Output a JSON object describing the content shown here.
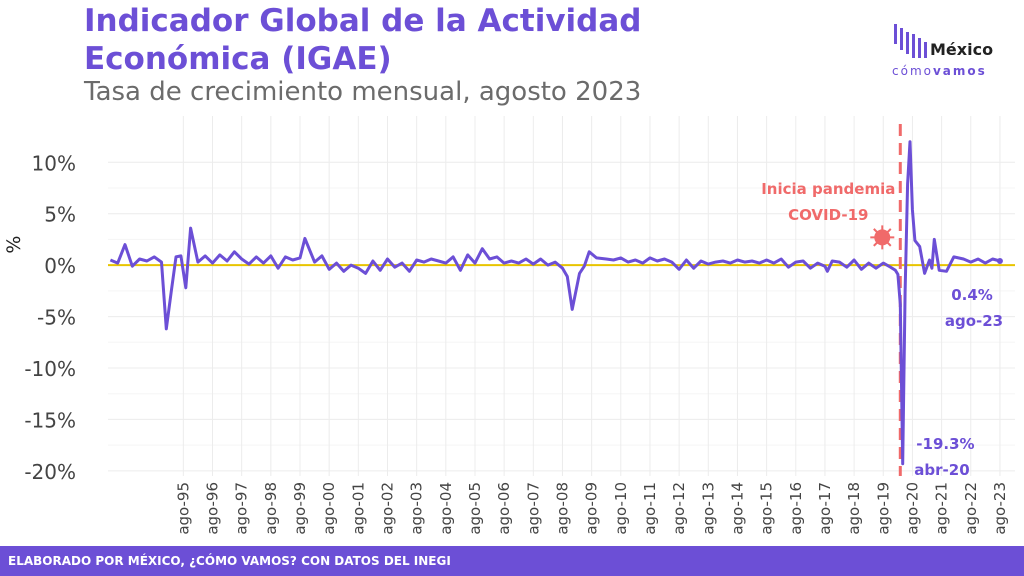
{
  "title": "Indicador Global de la Actividad Económica (IGAE)",
  "subtitle": "Tasa de crecimiento mensual, agosto 2023",
  "logo": {
    "word_main": "México",
    "word_prefix": "cómo",
    "word_bold": "vamos"
  },
  "footer": "ELABORADO POR MÉXICO, ¿CÓMO VAMOS? CON DATOS DEL INEGI",
  "colors": {
    "accent": "#6c4fd6",
    "line": "#6c4fd6",
    "zero_line": "#e8c400",
    "pandemic": "#f06a6a",
    "footer_bg": "#6c4fd6"
  },
  "chart_data": {
    "type": "line",
    "title": "Indicador Global de la Actividad Económica (IGAE)",
    "subtitle": "Tasa de crecimiento mensual, agosto 2023",
    "xlabel": "",
    "ylabel": "%",
    "ylim": [
      -20.5,
      14.5
    ],
    "yticks": [
      10,
      5,
      0,
      -5,
      -10,
      -15,
      -20
    ],
    "ytick_labels": [
      "10%",
      "5%",
      "0%",
      "-5%",
      "-10%",
      "-15%",
      "-20%"
    ],
    "xlim": [
      1993.0,
      2024.1
    ],
    "xticks": [
      "ago-95",
      "ago-96",
      "ago-97",
      "ago-98",
      "ago-99",
      "ago-00",
      "ago-01",
      "ago-02",
      "ago-03",
      "ago-04",
      "ago-05",
      "ago-06",
      "ago-07",
      "ago-08",
      "ago-09",
      "ago-10",
      "ago-11",
      "ago-12",
      "ago-13",
      "ago-14",
      "ago-15",
      "ago-16",
      "ago-17",
      "ago-18",
      "ago-19",
      "ago-20",
      "ago-21",
      "ago-22",
      "ago-23"
    ],
    "grid": true,
    "series": [
      {
        "points": [
          [
            "1993-02",
            0.5
          ],
          [
            "1993-05",
            0.2
          ],
          [
            "1993-08",
            2.0
          ],
          [
            "1993-11",
            -0.1
          ],
          [
            "1994-02",
            0.6
          ],
          [
            "1994-05",
            0.4
          ],
          [
            "1994-08",
            0.8
          ],
          [
            "1994-11",
            0.3
          ],
          [
            "1995-01",
            -6.2
          ],
          [
            "1995-03",
            -2.6
          ],
          [
            "1995-05",
            0.8
          ],
          [
            "1995-07",
            0.9
          ],
          [
            "1995-09",
            -2.2
          ],
          [
            "1995-11",
            3.6
          ],
          [
            "1996-02",
            0.3
          ],
          [
            "1996-05",
            0.9
          ],
          [
            "1996-08",
            0.2
          ],
          [
            "1996-11",
            1.0
          ],
          [
            "1997-02",
            0.4
          ],
          [
            "1997-05",
            1.3
          ],
          [
            "1997-08",
            0.6
          ],
          [
            "1997-11",
            0.1
          ],
          [
            "1998-02",
            0.8
          ],
          [
            "1998-05",
            0.2
          ],
          [
            "1998-08",
            0.9
          ],
          [
            "1998-11",
            -0.3
          ],
          [
            "1999-02",
            0.8
          ],
          [
            "1999-05",
            0.5
          ],
          [
            "1999-08",
            0.7
          ],
          [
            "1999-10",
            2.6
          ],
          [
            "2000-02",
            0.3
          ],
          [
            "2000-05",
            0.9
          ],
          [
            "2000-08",
            -0.4
          ],
          [
            "2000-11",
            0.2
          ],
          [
            "2001-02",
            -0.6
          ],
          [
            "2001-05",
            0.0
          ],
          [
            "2001-08",
            -0.3
          ],
          [
            "2001-11",
            -0.8
          ],
          [
            "2002-02",
            0.4
          ],
          [
            "2002-05",
            -0.5
          ],
          [
            "2002-08",
            0.6
          ],
          [
            "2002-11",
            -0.2
          ],
          [
            "2003-02",
            0.2
          ],
          [
            "2003-05",
            -0.6
          ],
          [
            "2003-08",
            0.5
          ],
          [
            "2003-11",
            0.3
          ],
          [
            "2004-02",
            0.6
          ],
          [
            "2004-05",
            0.4
          ],
          [
            "2004-08",
            0.2
          ],
          [
            "2004-11",
            0.8
          ],
          [
            "2005-02",
            -0.5
          ],
          [
            "2005-05",
            1.0
          ],
          [
            "2005-08",
            0.2
          ],
          [
            "2005-11",
            1.6
          ],
          [
            "2006-02",
            0.6
          ],
          [
            "2006-05",
            0.8
          ],
          [
            "2006-08",
            0.2
          ],
          [
            "2006-11",
            0.4
          ],
          [
            "2007-02",
            0.2
          ],
          [
            "2007-05",
            0.6
          ],
          [
            "2007-08",
            0.1
          ],
          [
            "2007-11",
            0.6
          ],
          [
            "2008-02",
            0.0
          ],
          [
            "2008-05",
            0.3
          ],
          [
            "2008-08",
            -0.3
          ],
          [
            "2008-10",
            -1.1
          ],
          [
            "2008-12",
            -4.3
          ],
          [
            "2009-03",
            -0.8
          ],
          [
            "2009-05",
            -0.1
          ],
          [
            "2009-07",
            1.3
          ],
          [
            "2009-10",
            0.7
          ],
          [
            "2010-02",
            0.6
          ],
          [
            "2010-05",
            0.5
          ],
          [
            "2010-08",
            0.7
          ],
          [
            "2010-11",
            0.3
          ],
          [
            "2011-02",
            0.5
          ],
          [
            "2011-05",
            0.2
          ],
          [
            "2011-08",
            0.7
          ],
          [
            "2011-11",
            0.4
          ],
          [
            "2012-02",
            0.6
          ],
          [
            "2012-05",
            0.3
          ],
          [
            "2012-08",
            -0.4
          ],
          [
            "2012-11",
            0.5
          ],
          [
            "2013-02",
            -0.3
          ],
          [
            "2013-05",
            0.4
          ],
          [
            "2013-08",
            0.1
          ],
          [
            "2013-11",
            0.3
          ],
          [
            "2014-02",
            0.4
          ],
          [
            "2014-05",
            0.2
          ],
          [
            "2014-08",
            0.5
          ],
          [
            "2014-11",
            0.3
          ],
          [
            "2015-02",
            0.4
          ],
          [
            "2015-05",
            0.2
          ],
          [
            "2015-08",
            0.5
          ],
          [
            "2015-11",
            0.2
          ],
          [
            "2016-02",
            0.6
          ],
          [
            "2016-05",
            -0.2
          ],
          [
            "2016-08",
            0.3
          ],
          [
            "2016-11",
            0.4
          ],
          [
            "2017-02",
            -0.3
          ],
          [
            "2017-05",
            0.2
          ],
          [
            "2017-08",
            -0.1
          ],
          [
            "2017-09",
            -0.6
          ],
          [
            "2017-11",
            0.4
          ],
          [
            "2018-02",
            0.3
          ],
          [
            "2018-05",
            -0.2
          ],
          [
            "2018-08",
            0.5
          ],
          [
            "2018-11",
            -0.4
          ],
          [
            "2019-02",
            0.2
          ],
          [
            "2019-05",
            -0.3
          ],
          [
            "2019-08",
            0.2
          ],
          [
            "2019-11",
            -0.2
          ],
          [
            "2020-01",
            -0.5
          ],
          [
            "2020-02",
            -0.9
          ],
          [
            "2020-03",
            -3.8
          ],
          [
            "2020-04",
            -19.3
          ],
          [
            "2020-05",
            -2.6
          ],
          [
            "2020-06",
            7.9
          ],
          [
            "2020-07",
            12.0
          ],
          [
            "2020-08",
            5.4
          ],
          [
            "2020-09",
            2.4
          ],
          [
            "2020-11",
            1.8
          ],
          [
            "2021-01",
            -0.8
          ],
          [
            "2021-03",
            0.5
          ],
          [
            "2021-04",
            -0.3
          ],
          [
            "2021-05",
            2.5
          ],
          [
            "2021-07",
            -0.5
          ],
          [
            "2021-10",
            -0.6
          ],
          [
            "2022-01",
            0.8
          ],
          [
            "2022-05",
            0.6
          ],
          [
            "2022-08",
            0.3
          ],
          [
            "2022-11",
            0.6
          ],
          [
            "2023-02",
            0.2
          ],
          [
            "2023-05",
            0.6
          ],
          [
            "2023-08",
            0.4
          ]
        ]
      }
    ],
    "reference_line": 0,
    "annotations": {
      "pandemic_line_date": "2020-03",
      "pandemic_label": [
        "Inicia pandemia",
        "COVID-19"
      ],
      "min_value": "-19.3%",
      "min_date": "abr-20",
      "last_value": "0.4%",
      "last_date": "ago-23"
    }
  }
}
